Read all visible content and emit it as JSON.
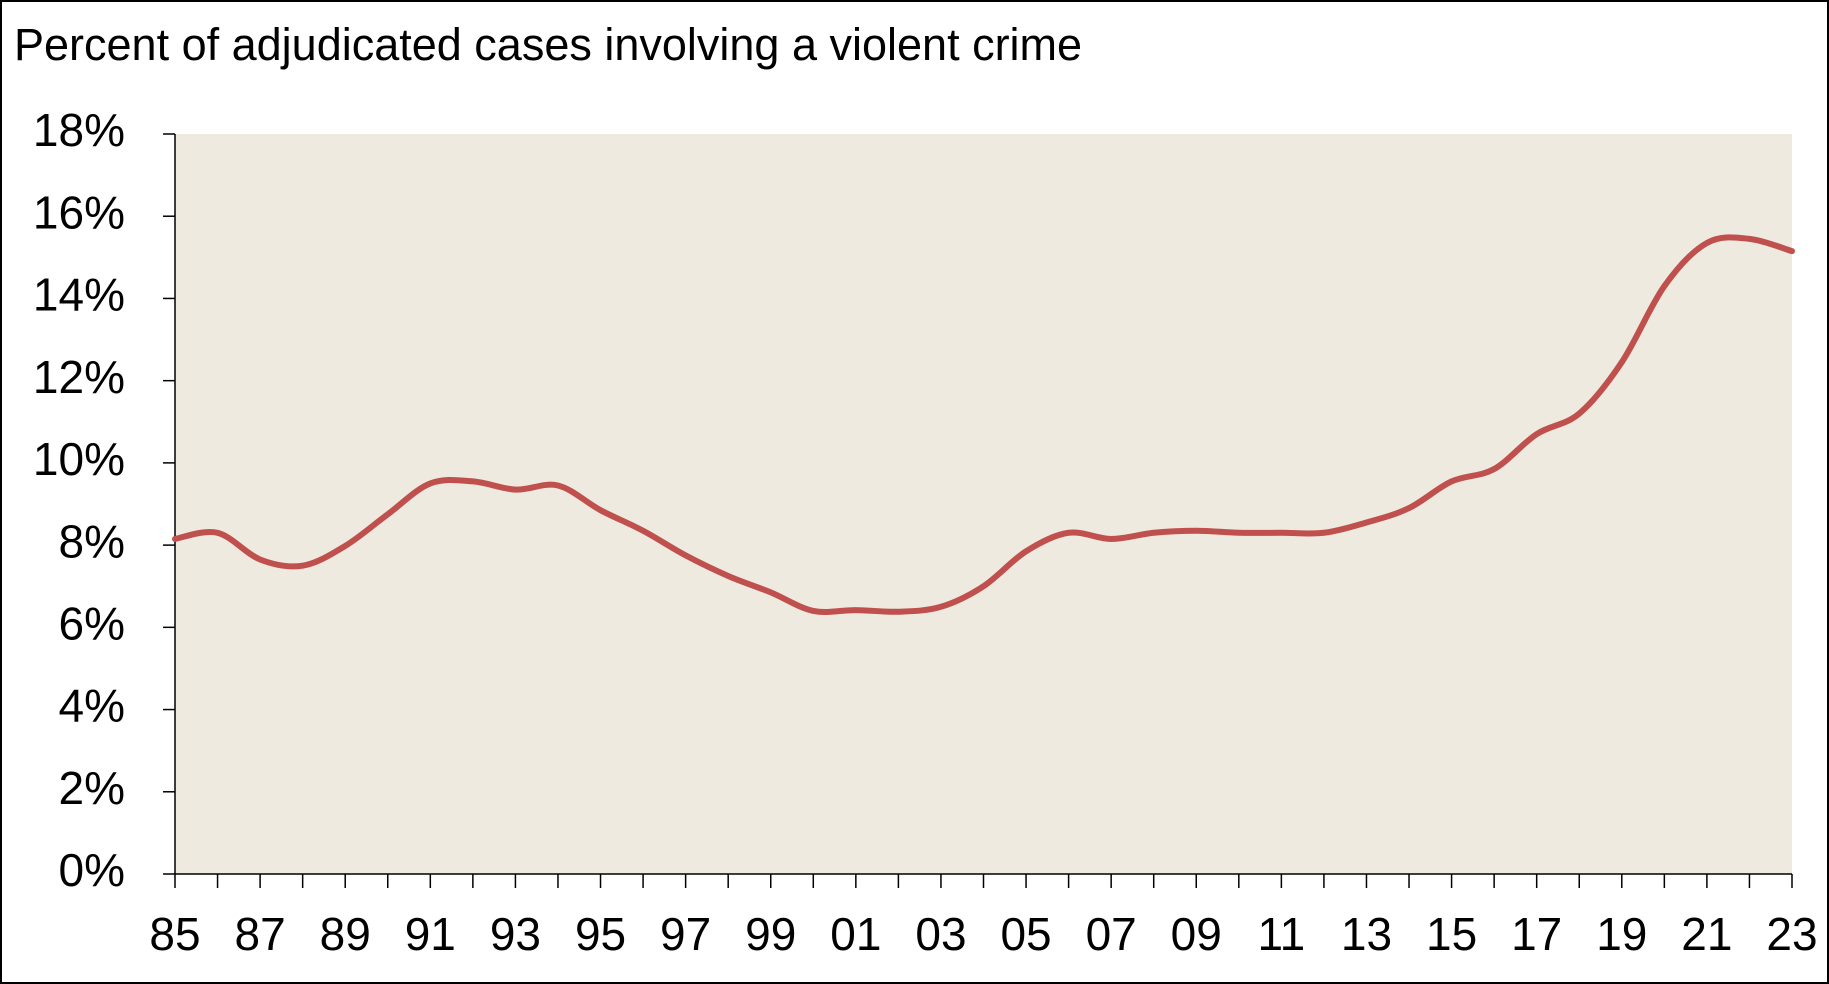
{
  "chart_data": {
    "type": "line",
    "title": "Percent of adjudicated cases involving a violent crime",
    "categories": [
      "85",
      null,
      "87",
      null,
      "89",
      null,
      "91",
      null,
      "93",
      null,
      "95",
      null,
      "97",
      null,
      "99",
      null,
      "01",
      null,
      "03",
      null,
      "05",
      null,
      "07",
      null,
      "09",
      null,
      "11",
      null,
      "13",
      null,
      "15",
      null,
      "17",
      null,
      "19",
      null,
      "21",
      null,
      "23"
    ],
    "series": [
      {
        "color": "#c0504d",
        "values": [
          8.15,
          8.3,
          7.65,
          7.5,
          7.98,
          8.75,
          9.5,
          9.55,
          9.35,
          9.45,
          8.85,
          8.35,
          7.75,
          7.25,
          6.85,
          6.4,
          6.42,
          6.38,
          6.5,
          7.0,
          7.85,
          8.3,
          8.15,
          8.3,
          8.35,
          8.3,
          8.3,
          8.3,
          8.55,
          8.9,
          9.55,
          9.85,
          10.7,
          11.2,
          12.45,
          14.3,
          15.35,
          15.45,
          15.15
        ]
      }
    ],
    "ylim": [
      0,
      18
    ],
    "yticks": [
      {
        "value": 0,
        "label": "0%"
      },
      {
        "value": 2,
        "label": "2%"
      },
      {
        "value": 4,
        "label": "4%"
      },
      {
        "value": 6,
        "label": "6%"
      },
      {
        "value": 8,
        "label": "8%"
      },
      {
        "value": 10,
        "label": "10%"
      },
      {
        "value": 12,
        "label": "12%"
      },
      {
        "value": 14,
        "label": "14%"
      },
      {
        "value": 16,
        "label": "16%"
      },
      {
        "value": 18,
        "label": "18%"
      }
    ],
    "plot_background": "#eeeae0"
  }
}
